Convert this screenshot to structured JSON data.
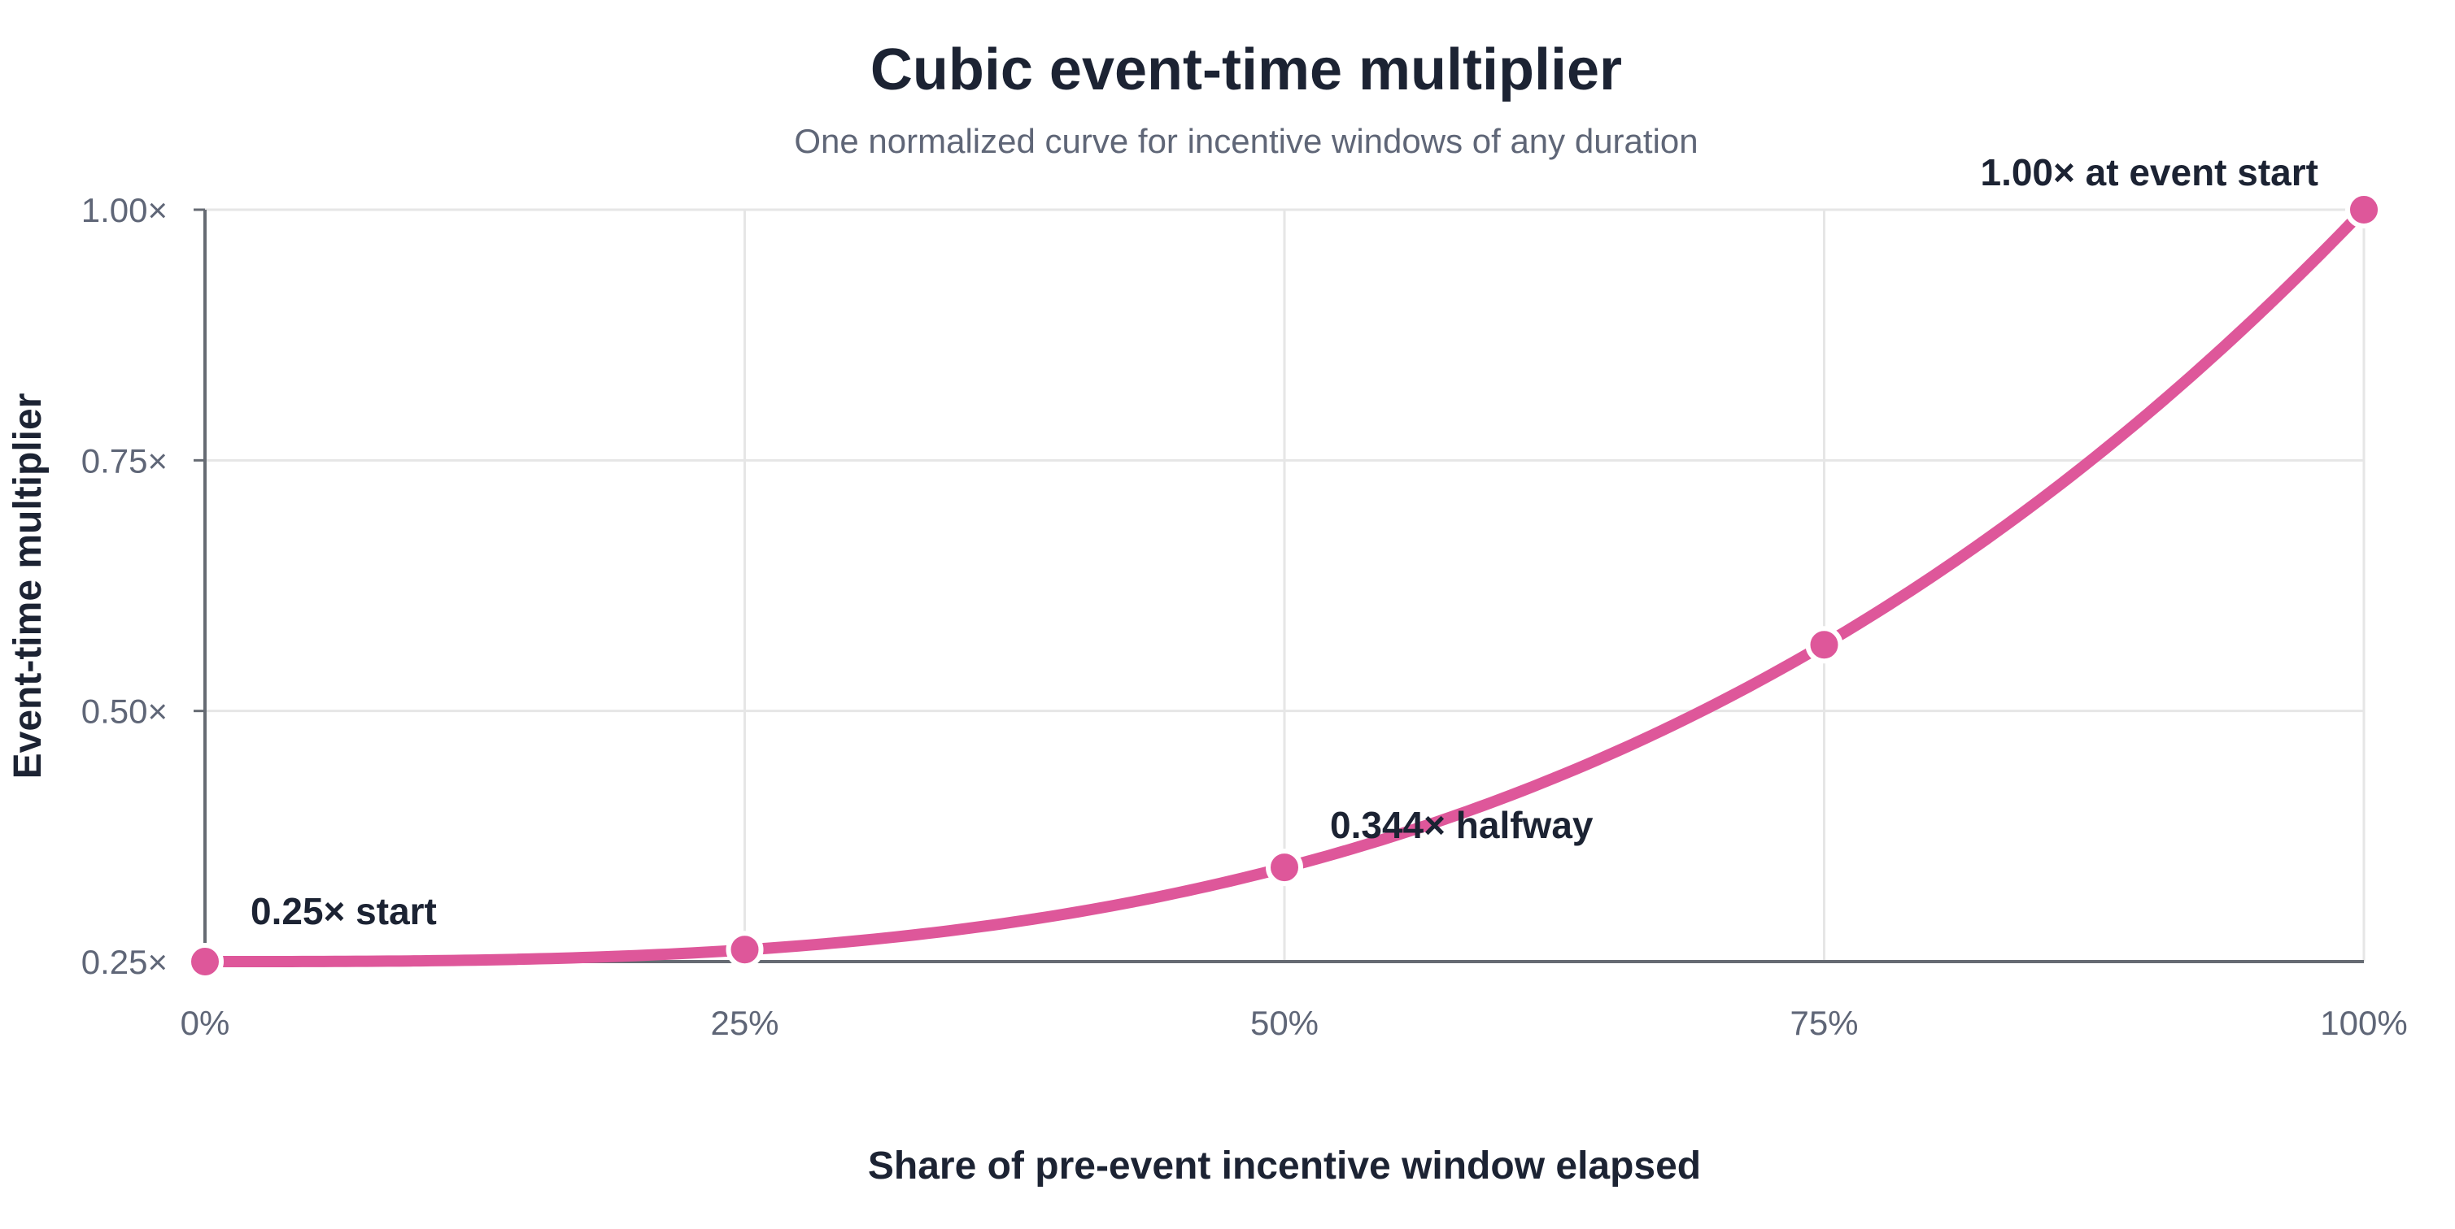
{
  "chart_data": {
    "type": "line",
    "title": "Cubic event-time multiplier",
    "subtitle": "One normalized curve for incentive windows of any duration",
    "xlabel": "Share of pre-event incentive window elapsed",
    "ylabel": "Event-time multiplier",
    "xlim": [
      0,
      100
    ],
    "ylim": [
      0.25,
      1.0
    ],
    "x_ticks": [
      0,
      25,
      50,
      75,
      100
    ],
    "x_tick_labels": [
      "0%",
      "25%",
      "50%",
      "75%",
      "100%"
    ],
    "y_ticks": [
      0.25,
      0.5,
      0.75,
      1.0
    ],
    "y_tick_labels": [
      "0.25×",
      "0.50×",
      "0.75×",
      "1.00×"
    ],
    "grid": true,
    "series": [
      {
        "color": "#de579a",
        "formula": "y = 0.25 + 0.75 * (x/100)^3",
        "markers": [
          {
            "x": 0,
            "y": 0.25
          },
          {
            "x": 25,
            "y": 0.262
          },
          {
            "x": 50,
            "y": 0.344
          },
          {
            "x": 75,
            "y": 0.566
          },
          {
            "x": 100,
            "y": 1.0
          }
        ]
      }
    ],
    "annotations": [
      {
        "x": 0,
        "y": 0.25,
        "text": "0.25× start"
      },
      {
        "x": 50,
        "y": 0.344,
        "text": "0.344× halfway"
      },
      {
        "x": 100,
        "y": 1.0,
        "text": "1.00× at event start"
      }
    ]
  }
}
